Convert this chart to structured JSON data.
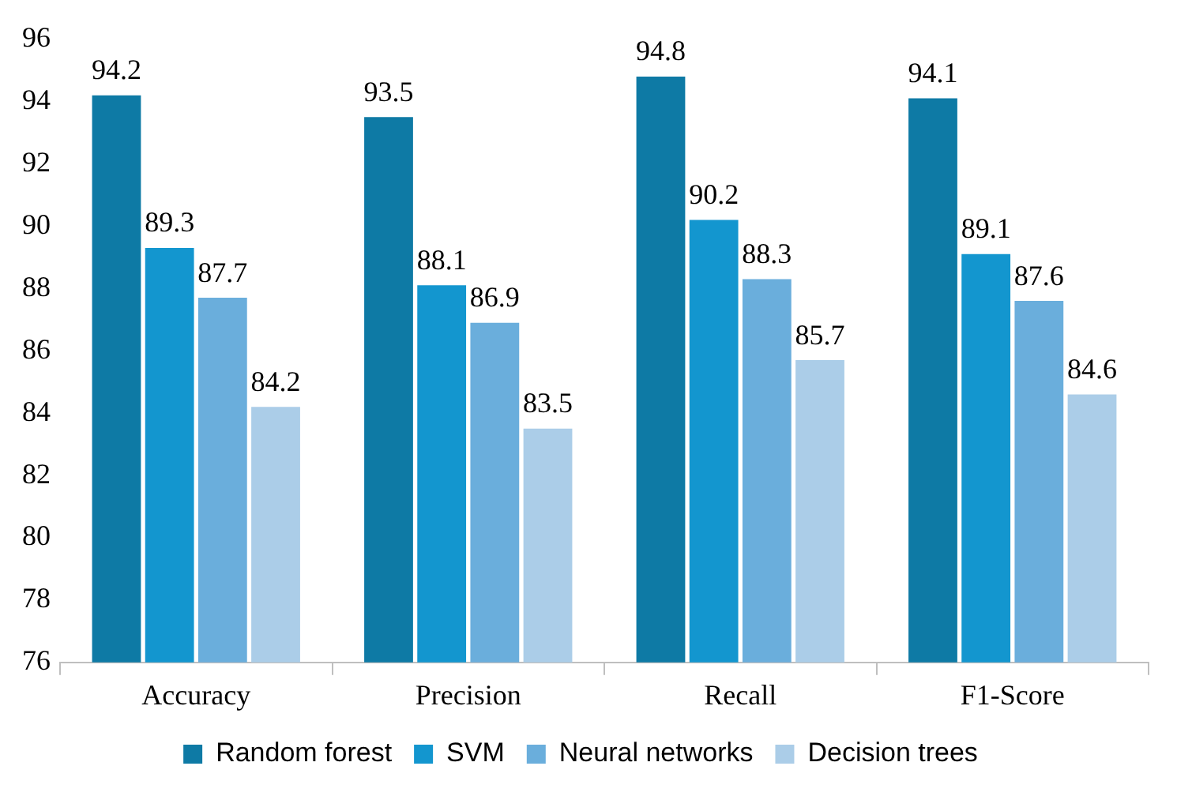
{
  "chart_data": {
    "type": "bar",
    "categories": [
      "Accuracy",
      "Precision",
      "Recall",
      "F1-Score"
    ],
    "series": [
      {
        "name": "Random forest",
        "color": "#0e7aa5",
        "values": [
          94.2,
          93.5,
          94.8,
          94.1
        ]
      },
      {
        "name": "SVM",
        "color": "#1396cf",
        "values": [
          89.3,
          88.1,
          90.2,
          89.1
        ]
      },
      {
        "name": "Neural networks",
        "color": "#6aaedc",
        "values": [
          87.7,
          86.9,
          88.3,
          87.6
        ]
      },
      {
        "name": "Decision trees",
        "color": "#abcde8",
        "values": [
          84.2,
          83.5,
          85.7,
          84.6
        ]
      }
    ],
    "ylim": [
      76,
      96
    ],
    "yticks": [
      76,
      78,
      80,
      82,
      84,
      86,
      88,
      90,
      92,
      94,
      96
    ],
    "grid": false,
    "legend": "bottom",
    "data_labels": true
  }
}
